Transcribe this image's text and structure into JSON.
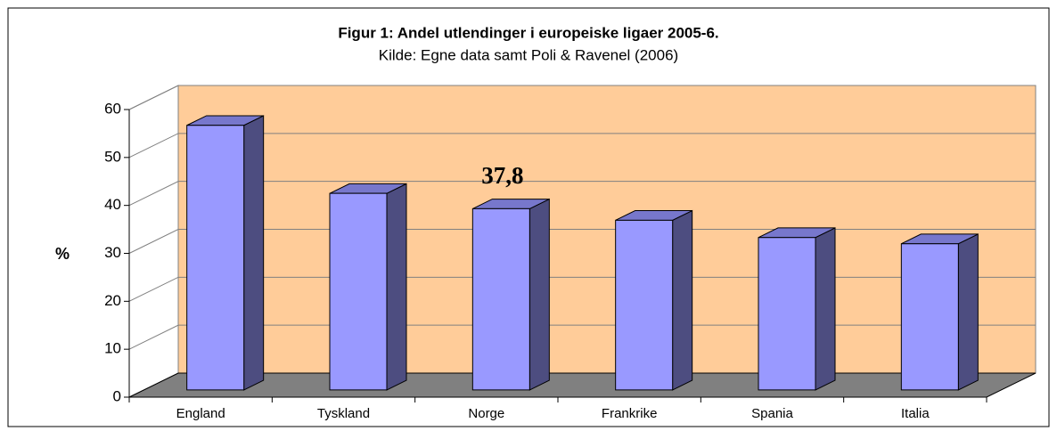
{
  "chart_data": {
    "type": "bar3d",
    "title": "Figur 1: Andel utlendinger i europeiske ligaer 2005-6.",
    "subtitle": "Kilde: Egne data samt Poli & Ravenel (2006)",
    "ylabel": "%",
    "categories": [
      "England",
      "Tyskland",
      "Norge",
      "Frankrike",
      "Spania",
      "Italia"
    ],
    "values": [
      55.2,
      41.0,
      37.8,
      35.4,
      31.8,
      30.5
    ],
    "value_labels": [
      null,
      null,
      "37,8",
      null,
      null,
      null
    ],
    "color": "#9999ff",
    "side_color": "#4d4d80",
    "top_color": "#7777cc",
    "wall_color": "#ffcc99",
    "floor_color": "#808080",
    "ylim": [
      0,
      60
    ],
    "yticks": [
      0,
      10,
      20,
      30,
      40,
      50,
      60
    ],
    "grid": true
  }
}
